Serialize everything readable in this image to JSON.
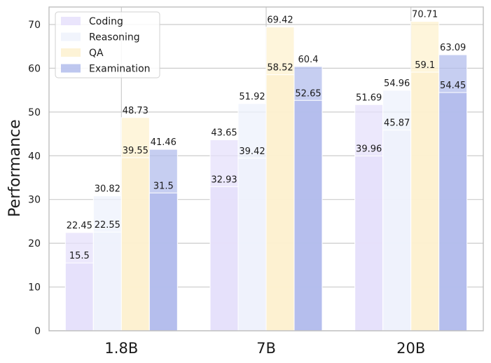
{
  "chart_data": {
    "type": "bar",
    "categories": [
      "1.8B",
      "7B",
      "20B"
    ],
    "ylabel": "Performance",
    "xlabel": "",
    "ylim": [
      0,
      74
    ],
    "yticks": [
      0,
      10,
      20,
      30,
      40,
      50,
      60,
      70
    ],
    "grid": true,
    "legend_position": "top-left",
    "series": [
      {
        "name": "Coding",
        "color": "#e6e0fb",
        "values": [
          22.45,
          43.65,
          51.69
        ],
        "inner_values": [
          15.5,
          32.93,
          39.96
        ]
      },
      {
        "name": "Reasoning",
        "color": "#eef2fc",
        "values": [
          30.82,
          51.92,
          54.96
        ],
        "inner_values": [
          22.55,
          39.42,
          45.87
        ]
      },
      {
        "name": "QA",
        "color": "#fdf1cf",
        "values": [
          48.73,
          69.42,
          70.71
        ],
        "inner_values": [
          39.55,
          58.52,
          59.1
        ]
      },
      {
        "name": "Examination",
        "color": "#b3bdec",
        "values": [
          41.46,
          60.4,
          63.09
        ],
        "inner_values": [
          31.5,
          52.65,
          54.45
        ]
      }
    ]
  }
}
